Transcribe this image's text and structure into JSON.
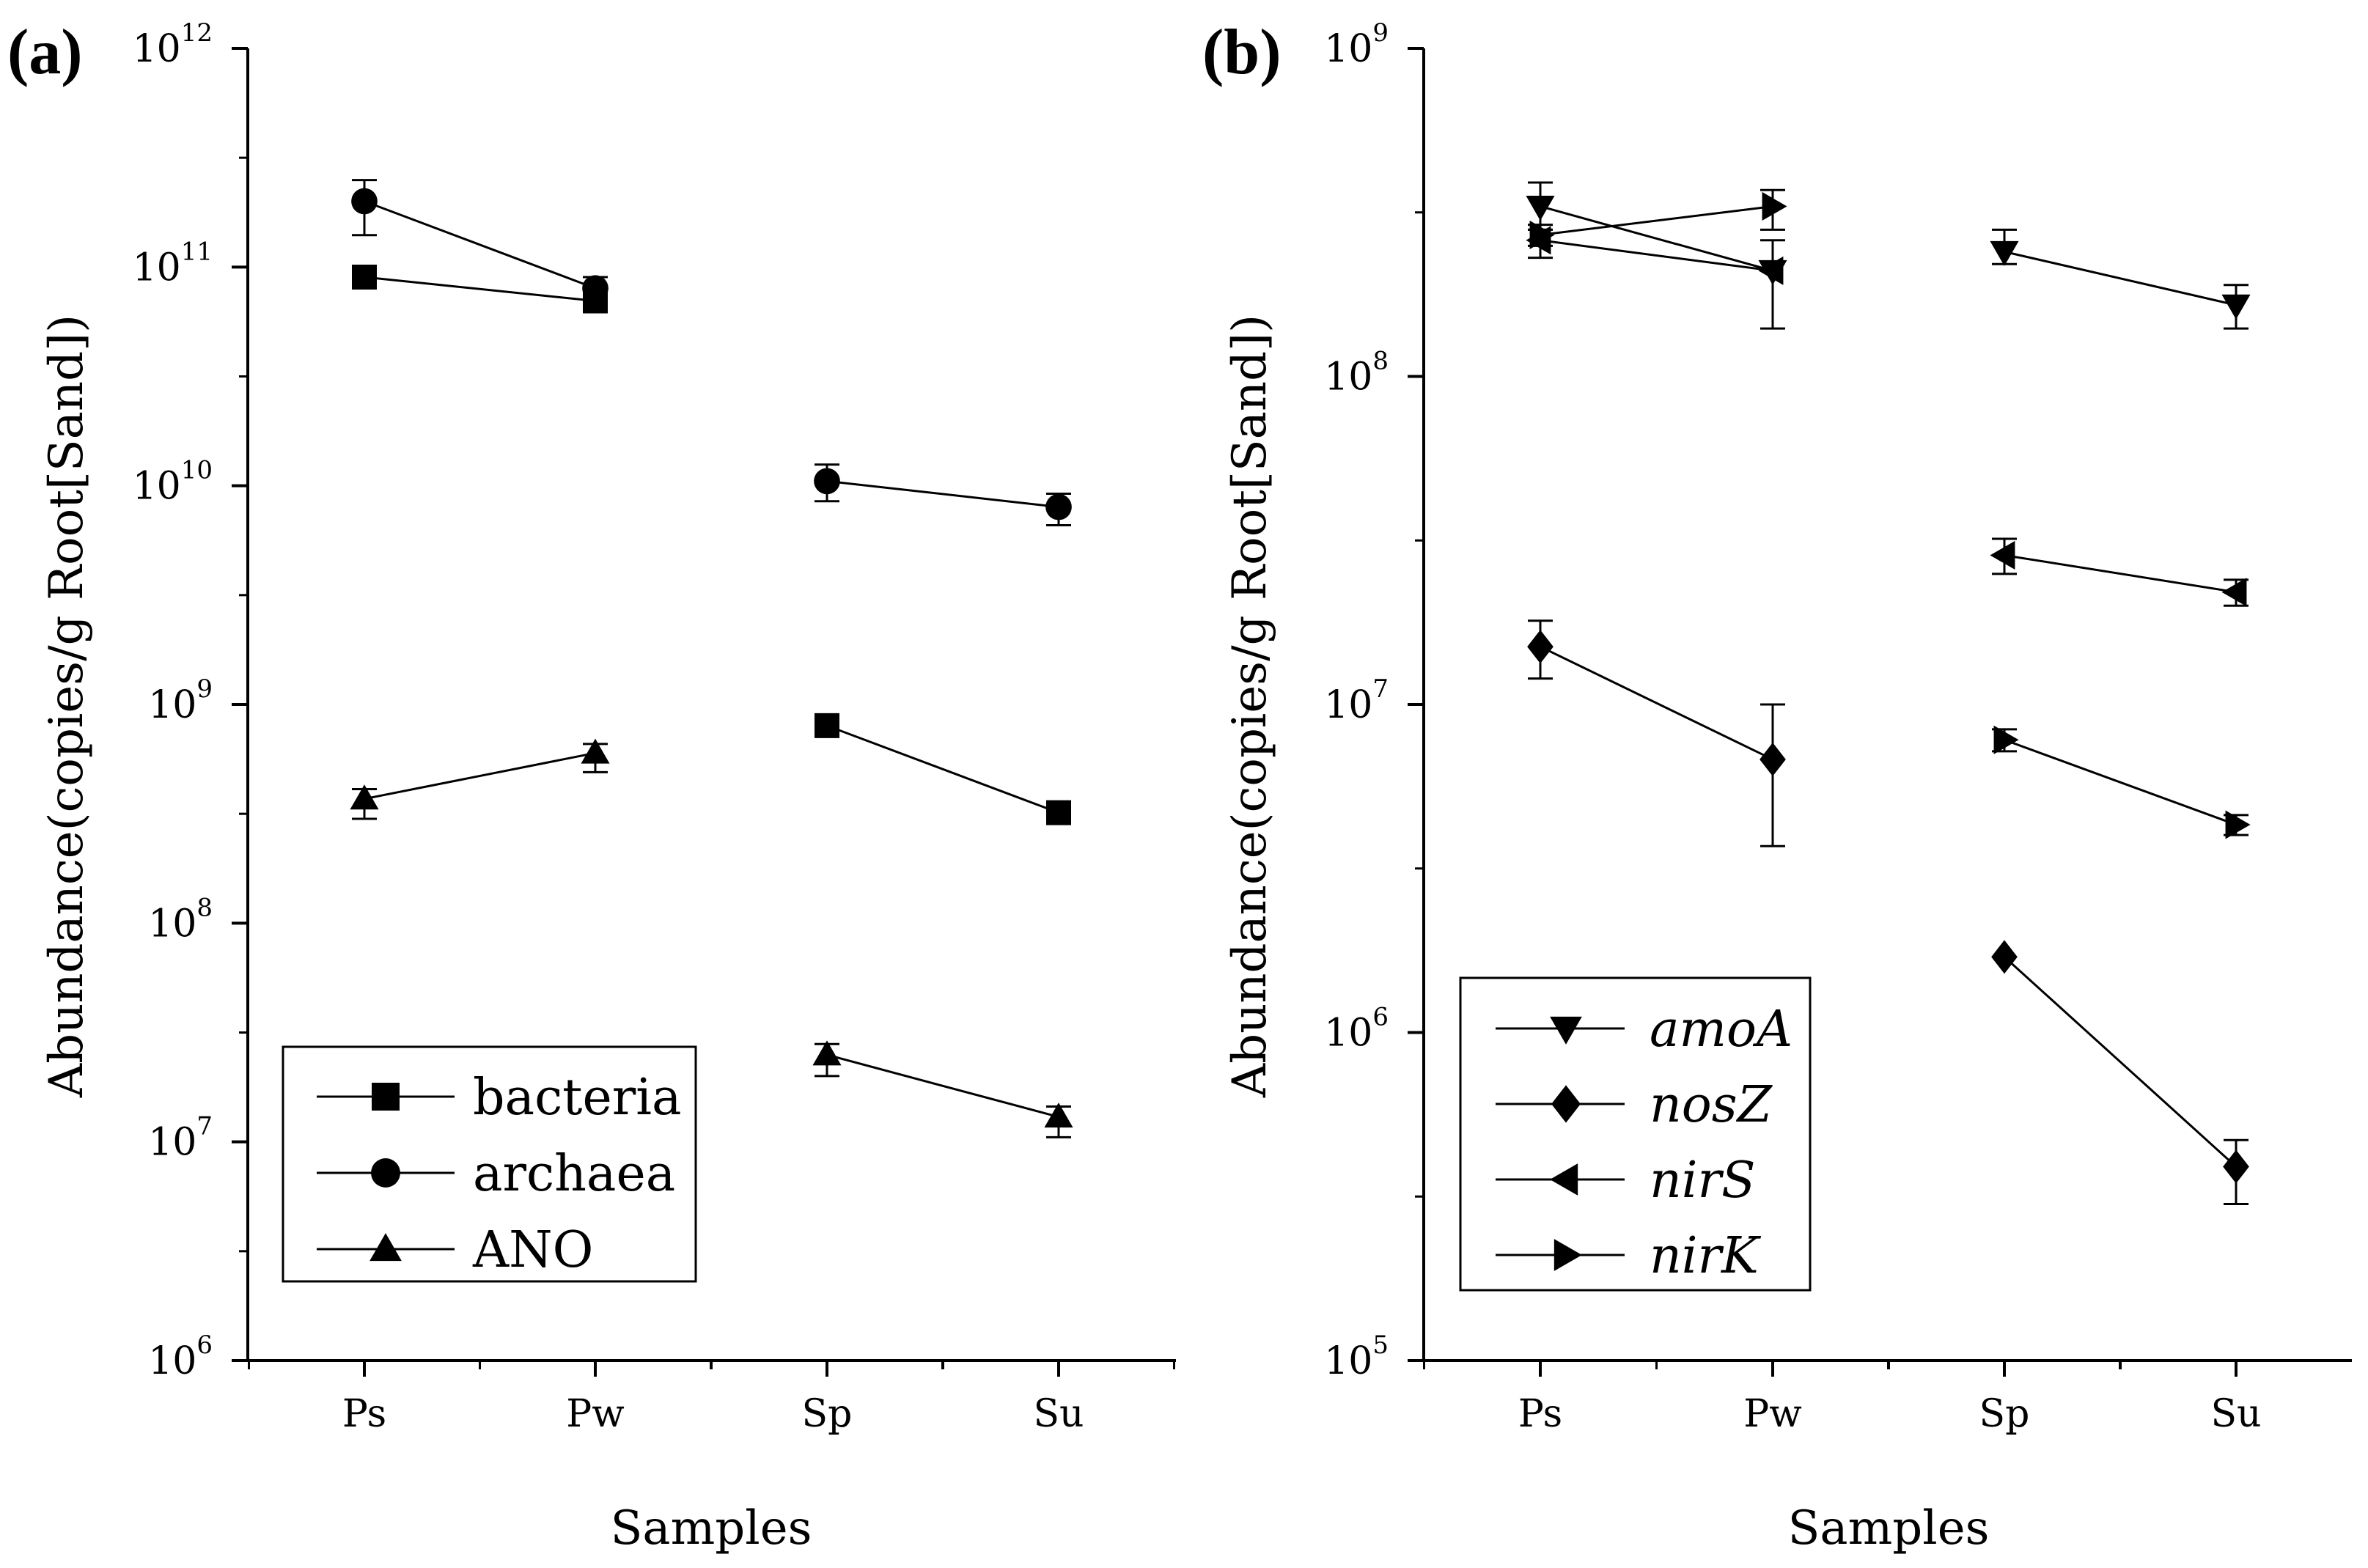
{
  "chart_data": [
    {
      "panel_label": "(a)",
      "type": "line",
      "scale": "log",
      "categories": [
        "Ps",
        "Pw",
        "Sp",
        "Su"
      ],
      "xlabel": "Samples",
      "ylabel": "Abundance(copies/g Root[Sand])",
      "ylim_exponents": [
        6,
        12
      ],
      "ytick_base": "10",
      "ytick_exponents": [
        "6",
        "7",
        "8",
        "9",
        "10",
        "11",
        "12"
      ],
      "grid": false,
      "legend_position": "bottom-left",
      "italic_legend": false,
      "series": [
        {
          "name": "bacteria",
          "marker": "square",
          "values": [
            90000000000.0,
            70000000000.0,
            800000000.0,
            320000000.0
          ],
          "err_low": [
            null,
            null,
            null,
            null
          ],
          "err_high": [
            null,
            null,
            null,
            null
          ]
        },
        {
          "name": "archaea",
          "marker": "circle",
          "values": [
            200000000000.0,
            80000000000.0,
            10500000000.0,
            8000000000.0
          ],
          "err_low": [
            140000000000.0,
            70000000000.0,
            8500000000.0,
            6600000000.0
          ],
          "err_high": [
            250000000000.0,
            90000000000.0,
            12500000000.0,
            9200000000.0
          ]
        },
        {
          "name": "ANO",
          "marker": "triangle-up",
          "values": [
            370000000.0,
            600000000.0,
            25000000.0,
            13000000.0
          ],
          "err_low": [
            300000000.0,
            490000000.0,
            20000000.0,
            10500000.0
          ],
          "err_high": [
            410000000.0,
            660000000.0,
            28000000.0,
            14500000.0
          ]
        }
      ]
    },
    {
      "panel_label": "(b)",
      "type": "line",
      "scale": "log",
      "categories": [
        "Ps",
        "Pw",
        "Sp",
        "Su"
      ],
      "xlabel": "Samples",
      "ylabel": "Abundance(copies/g Root[Sand])",
      "ylim_exponents": [
        5,
        9
      ],
      "ytick_base": "10",
      "ytick_exponents": [
        "5",
        "6",
        "7",
        "8",
        "9"
      ],
      "grid": false,
      "legend_position": "bottom-left",
      "italic_legend": true,
      "series": [
        {
          "name": "amoA",
          "marker": "triangle-down",
          "values": [
            330000000.0,
            210000000.0,
            240000000.0,
            165000000.0
          ],
          "err_low": [
            280000000.0,
            140000000.0,
            220000000.0,
            140000000.0
          ],
          "err_high": [
            390000000.0,
            260000000.0,
            280000000.0,
            190000000.0
          ]
        },
        {
          "name": "nosZ",
          "marker": "diamond",
          "values": [
            15000000.0,
            6800000.0,
            1700000.0,
            390000.0
          ],
          "err_low": [
            12000000.0,
            3700000.0,
            null,
            300000.0
          ],
          "err_high": [
            18000000.0,
            10000000.0,
            null,
            470000.0
          ]
        },
        {
          "name": "nirS",
          "marker": "triangle-left",
          "values": [
            260000000.0,
            210000000.0,
            28500000.0,
            22000000.0
          ],
          "err_low": [
            230000000.0,
            null,
            25000000.0,
            20000000.0
          ],
          "err_high": [
            280000000.0,
            null,
            32000000.0,
            24000000.0
          ]
        },
        {
          "name": "nirK",
          "marker": "triangle-right",
          "values": [
            270000000.0,
            330000000.0,
            7800000.0,
            4300000.0
          ],
          "err_low": [
            250000000.0,
            280000000.0,
            7200000.0,
            4000000.0
          ],
          "err_high": [
            290000000.0,
            370000000.0,
            8400000.0,
            4600000.0
          ]
        }
      ]
    }
  ]
}
